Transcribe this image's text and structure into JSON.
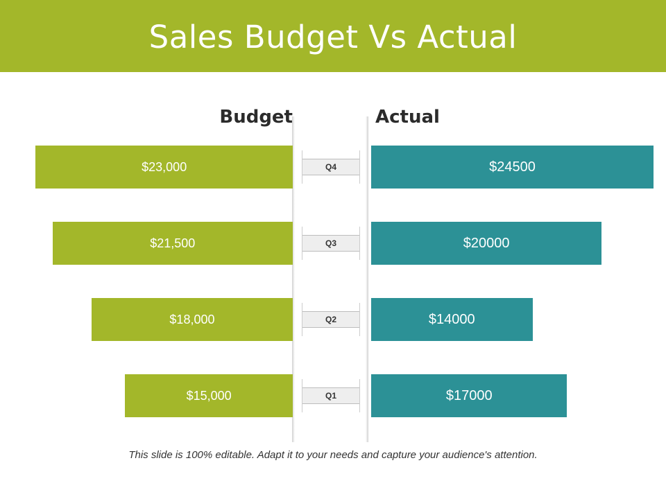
{
  "title": "Sales Budget Vs Actual",
  "footer": "This slide is 100% editable. Adapt it to your needs and capture your audience's attention.",
  "colors": {
    "header": "#a3b72a",
    "budget": "#a3b72a",
    "actual": "#2c9196"
  },
  "chart_data": {
    "type": "bar",
    "orientation": "horizontal-butterfly",
    "categories": [
      "Q4",
      "Q3",
      "Q2",
      "Q1"
    ],
    "series": [
      {
        "name": "Budget",
        "values": [
          23000,
          21500,
          18000,
          15000
        ],
        "labels": [
          "$23,000",
          "$21,500",
          "$18,000",
          "$15,000"
        ]
      },
      {
        "name": "Actual",
        "values": [
          24500,
          20000,
          14000,
          17000
        ],
        "labels": [
          "$24500",
          "$20000",
          "$14000",
          "$17000"
        ]
      }
    ]
  }
}
